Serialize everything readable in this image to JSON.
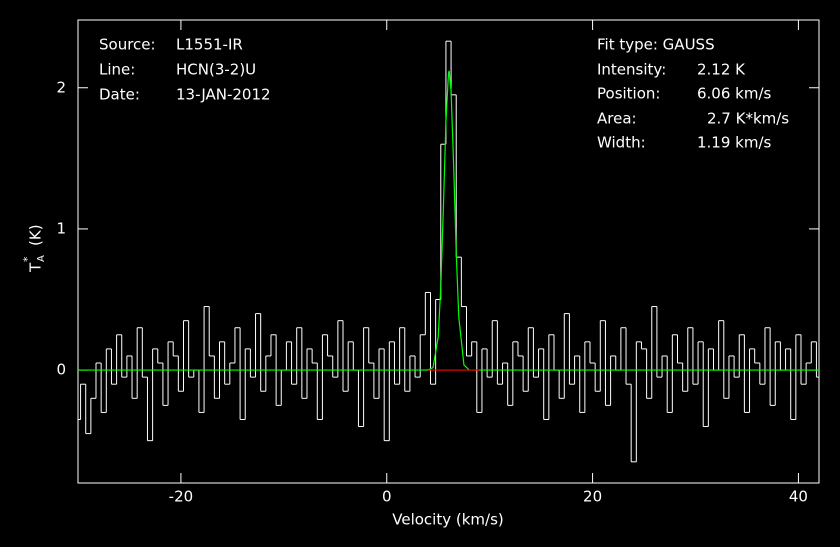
{
  "chart_data": {
    "type": "step",
    "xlabel": "Velocity (km/s)",
    "ylabel": {
      "base": "T",
      "sub": "A",
      "sup": "*",
      "unit": "(K)"
    },
    "header": [
      {
        "label": "Source:",
        "value": "L1551-IR"
      },
      {
        "label": "Line:",
        "value": "HCN(3-2)U"
      },
      {
        "label": "Date:",
        "value": "13-JAN-2012"
      }
    ],
    "fit_type": "Fit type: GAUSS",
    "fit_params": [
      {
        "label": "Intensity:",
        "value": "2.12 K"
      },
      {
        "label": "Position:",
        "value": "6.06 km/s"
      },
      {
        "label": "Area:",
        "value": "2.7 K*km/s"
      },
      {
        "label": "Width:",
        "value": "1.19 km/s"
      }
    ],
    "xlim": [
      -30,
      42
    ],
    "ylim": [
      -0.8,
      2.48
    ],
    "xticks": [
      -20,
      0,
      20,
      40
    ],
    "yticks": [
      0,
      1,
      2
    ],
    "series": [
      {
        "color": "#ffffff",
        "style": "step",
        "x": [
          -30,
          -29.5,
          -29,
          -28.5,
          -28,
          -27.5,
          -27,
          -26.5,
          -26,
          -25.5,
          -25,
          -24.5,
          -24,
          -23.5,
          -23,
          -22.5,
          -22,
          -21.5,
          -21,
          -20.5,
          -20,
          -19.5,
          -19,
          -18.5,
          -18,
          -17.5,
          -17,
          -16.5,
          -16,
          -15.5,
          -15,
          -14.5,
          -14,
          -13.5,
          -13,
          -12.5,
          -12,
          -11.5,
          -11,
          -10.5,
          -10,
          -9.5,
          -9,
          -8.5,
          -8,
          -7.5,
          -7,
          -6.5,
          -6,
          -5.5,
          -5,
          -4.5,
          -4,
          -3.5,
          -3,
          -2.5,
          -2,
          -1.5,
          -1,
          -0.5,
          0,
          0.5,
          1,
          1.5,
          2,
          2.5,
          3,
          3.5,
          4,
          4.5,
          5,
          5.5,
          6,
          6.5,
          7,
          7.5,
          8,
          8.5,
          9,
          9.5,
          10,
          10.5,
          11,
          11.5,
          12,
          12.5,
          13,
          13.5,
          14,
          14.5,
          15,
          15.5,
          16,
          16.5,
          17,
          17.5,
          18,
          18.5,
          19,
          19.5,
          20,
          20.5,
          21,
          21.5,
          22,
          22.5,
          23,
          23.5,
          24,
          24.5,
          25,
          25.5,
          26,
          26.5,
          27,
          27.5,
          28,
          28.5,
          29,
          29.5,
          30,
          30.5,
          31,
          31.5,
          32,
          32.5,
          33,
          33.5,
          34,
          34.5,
          35,
          35.5,
          36,
          36.5,
          37,
          37.5,
          38,
          38.5,
          39,
          39.5,
          40,
          40.5,
          41,
          41.5,
          42
        ],
        "values": [
          -0.35,
          -0.1,
          -0.45,
          -0.2,
          0.05,
          -0.3,
          0.15,
          -0.1,
          0.25,
          -0.05,
          0.1,
          -0.2,
          0.3,
          -0.05,
          -0.5,
          0.15,
          0.05,
          -0.25,
          0.2,
          0.1,
          -0.15,
          0.35,
          -0.05,
          0.0,
          -0.3,
          0.45,
          0.1,
          -0.2,
          0.2,
          -0.1,
          0.05,
          0.3,
          -0.35,
          0.15,
          -0.05,
          0.4,
          -0.15,
          0.1,
          0.25,
          -0.25,
          0.0,
          0.2,
          -0.1,
          0.3,
          -0.2,
          0.15,
          0.05,
          -0.35,
          0.25,
          0.1,
          -0.05,
          0.35,
          -0.15,
          0.2,
          0.0,
          -0.4,
          0.3,
          0.05,
          -0.2,
          0.15,
          -0.5,
          0.2,
          -0.1,
          0.3,
          -0.15,
          0.1,
          -0.05,
          0.25,
          0.55,
          -0.1,
          0.5,
          1.6,
          2.33,
          1.95,
          0.8,
          0.45,
          0.1,
          0.2,
          -0.3,
          0.15,
          -0.05,
          0.35,
          -0.1,
          0.05,
          -0.25,
          0.2,
          0.1,
          -0.15,
          0.3,
          -0.05,
          0.15,
          -0.35,
          0.25,
          0.0,
          -0.2,
          0.4,
          -0.1,
          0.1,
          -0.3,
          0.2,
          0.05,
          -0.15,
          0.35,
          -0.25,
          0.1,
          0.0,
          0.3,
          -0.1,
          -0.65,
          0.2,
          0.15,
          -0.2,
          0.45,
          -0.05,
          0.1,
          -0.3,
          0.25,
          0.05,
          -0.15,
          0.3,
          -0.1,
          0.2,
          -0.4,
          0.15,
          0.0,
          0.35,
          -0.2,
          0.1,
          -0.05,
          0.25,
          -0.3,
          0.15,
          0.05,
          -0.1,
          0.3,
          -0.25,
          0.2,
          0.0,
          0.15,
          -0.35,
          0.25,
          -0.1,
          0.05,
          0.2,
          -0.05
        ]
      },
      {
        "color": "#00ff00",
        "style": "line",
        "x": [
          -30,
          3.5,
          4,
          4.5,
          5,
          5.25,
          5.5,
          5.75,
          6,
          6.06,
          6.25,
          6.5,
          6.75,
          7,
          7.5,
          8,
          8.5,
          42
        ],
        "values": [
          0,
          0,
          0.0005,
          0.018,
          0.235,
          0.585,
          1.146,
          1.756,
          2.105,
          2.12,
          1.976,
          1.45,
          0.833,
          0.375,
          0.036,
          0.001,
          0,
          0
        ]
      },
      {
        "color": "#ff0000",
        "style": "line",
        "x": [
          4,
          9
        ],
        "values": [
          0,
          0
        ]
      }
    ]
  }
}
